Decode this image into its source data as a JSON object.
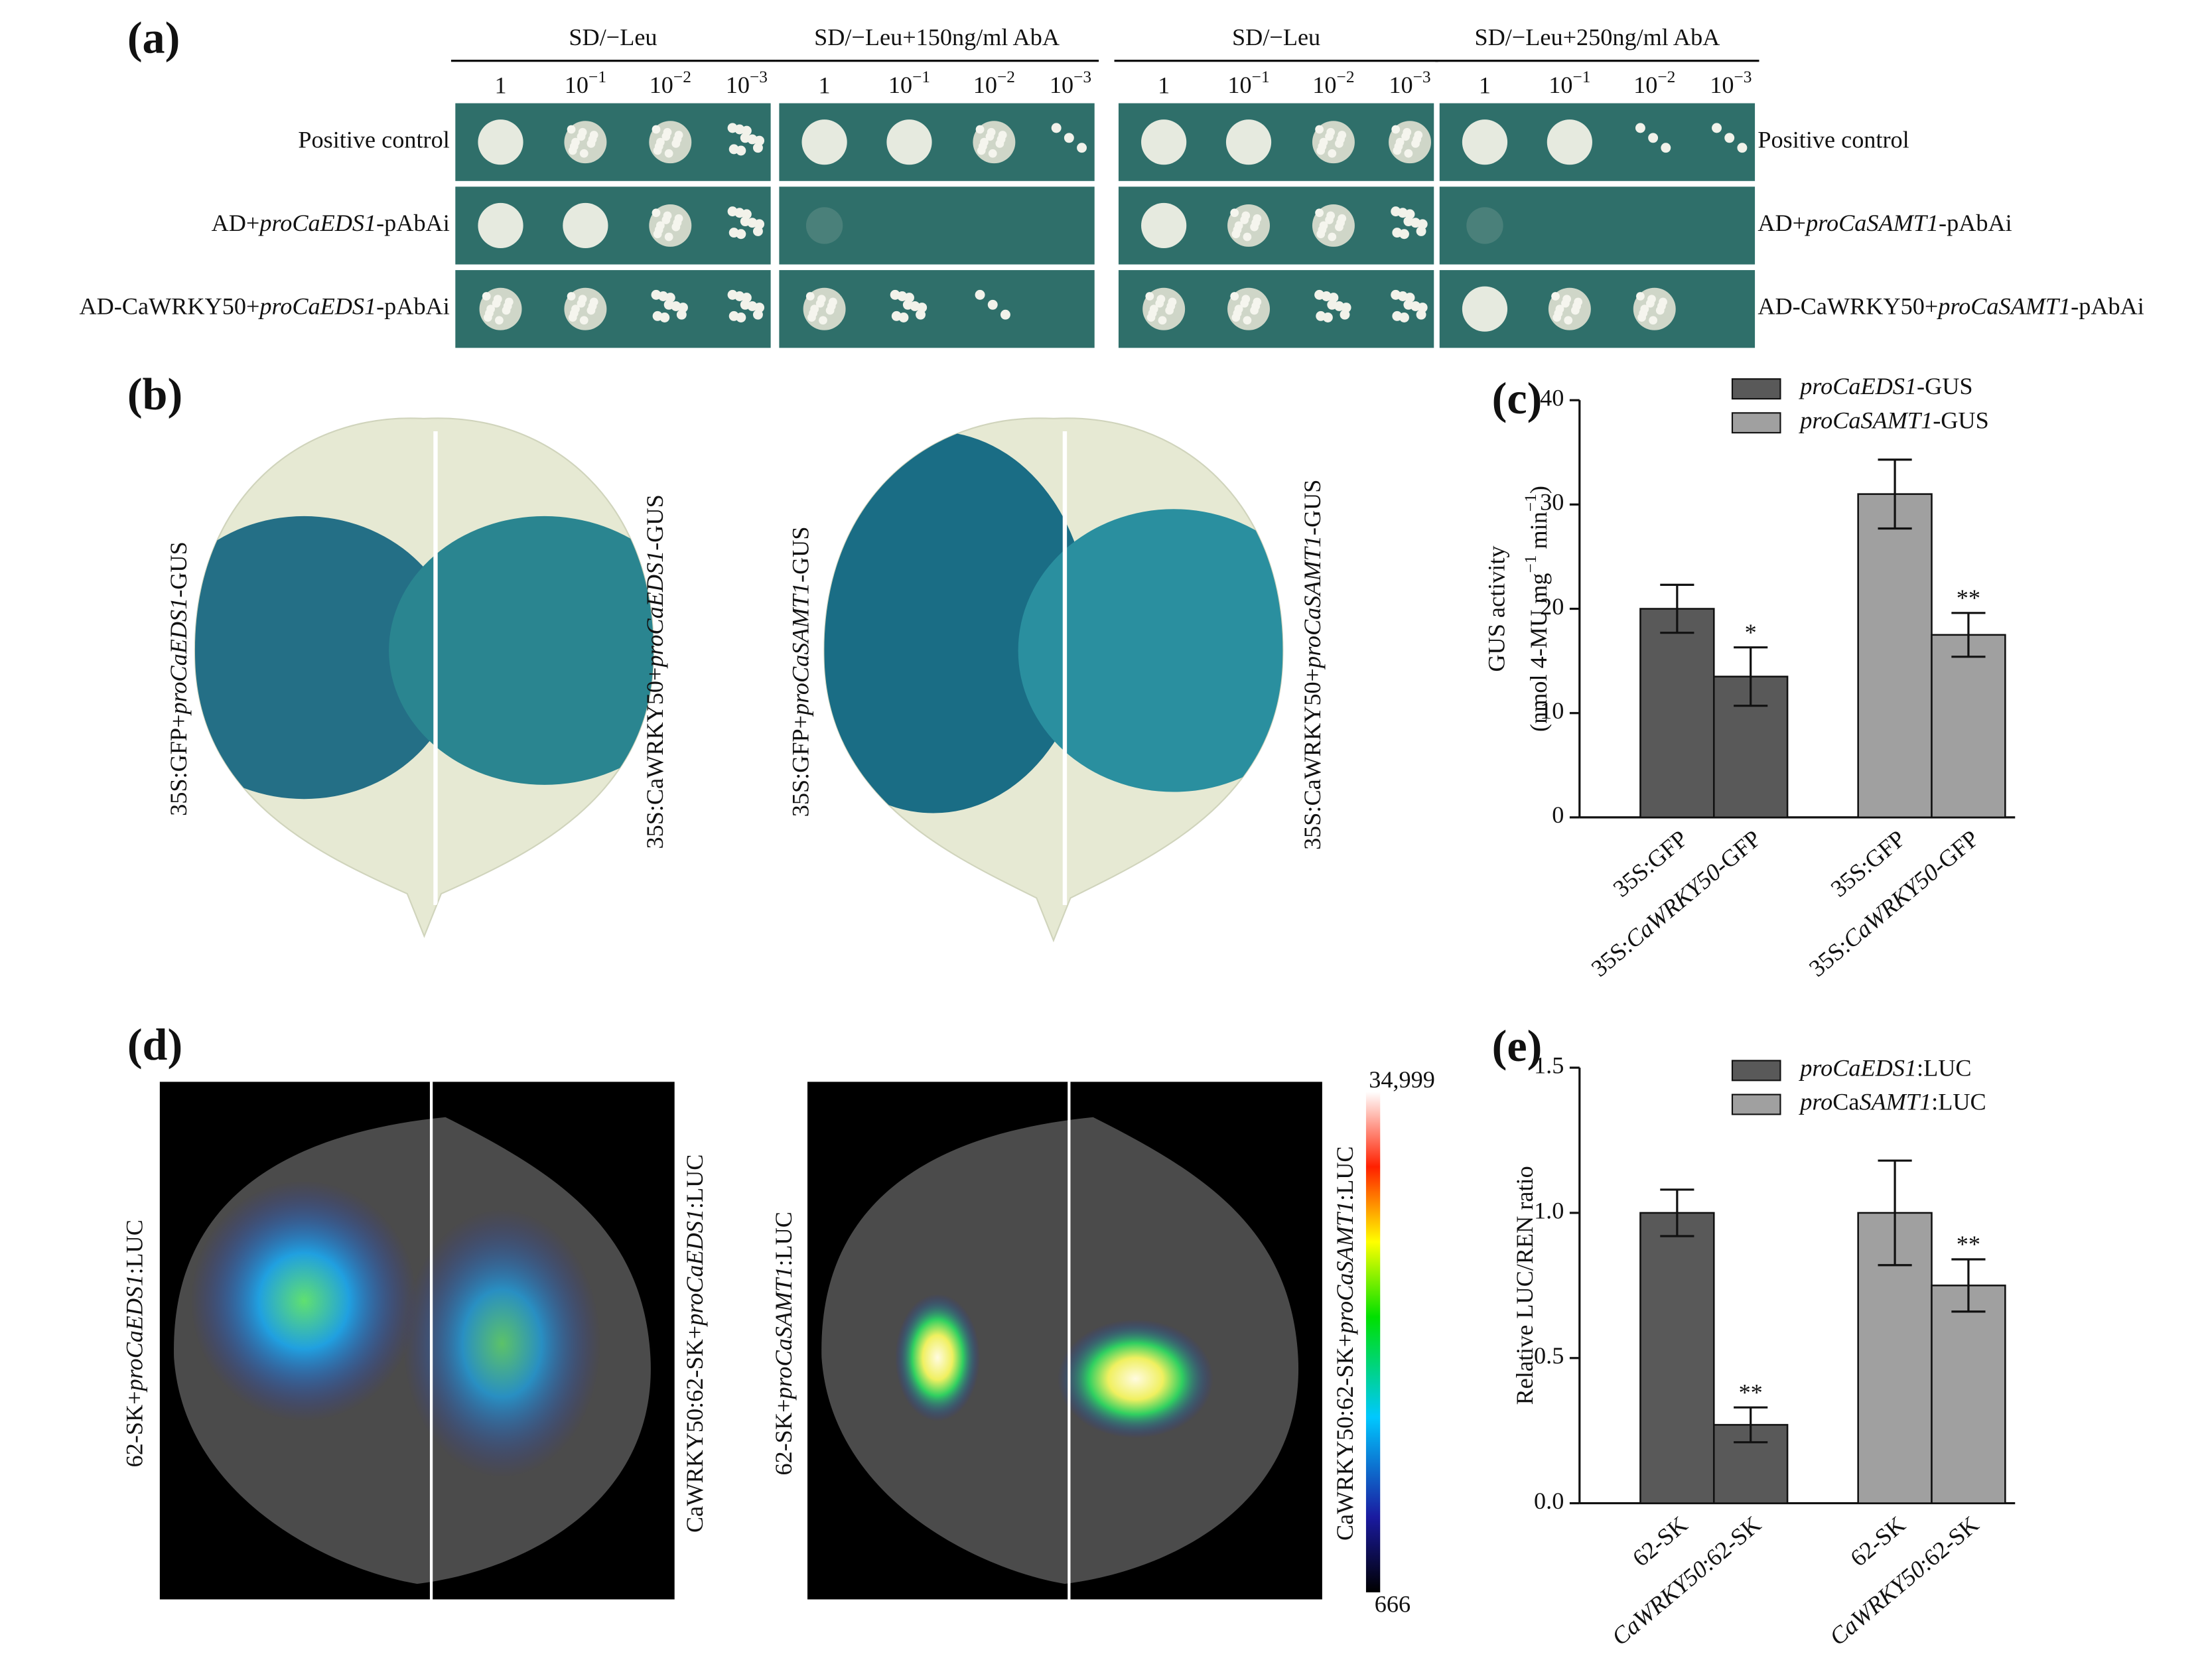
{
  "panel_a": {
    "label": "(a)",
    "headers": [
      "SD/−Leu",
      "SD/−Leu+150ng/ml AbA",
      "SD/−Leu",
      "SD/−Leu+250ng/ml AbA"
    ],
    "dilutions": [
      "1",
      [
        {
          "text": "10"
        },
        {
          "text": "−1",
          "sup": true
        }
      ],
      [
        {
          "text": "10"
        },
        {
          "text": "−2",
          "sup": true
        }
      ],
      [
        {
          "text": "10"
        },
        {
          "text": "−3",
          "sup": true
        }
      ]
    ],
    "rows_left": [
      "Positive control",
      [
        {
          "text": "AD+"
        },
        {
          "text": "proCaEDS1",
          "italic": true
        },
        {
          "text": "-pAbAi"
        }
      ],
      [
        {
          "text": "AD-CaWRKY50+"
        },
        {
          "text": "proCaEDS1",
          "italic": true
        },
        {
          "text": "-pAbAi"
        }
      ]
    ],
    "rows_right": [
      "Positive control",
      [
        {
          "text": "AD+"
        },
        {
          "text": "proCaSAMT1",
          "italic": true
        },
        {
          "text": "-pAbAi"
        }
      ],
      [
        {
          "text": "AD-CaWRKY50+"
        },
        {
          "text": "proCaSAMT1",
          "italic": true
        },
        {
          "text": "-pAbAi"
        }
      ]
    ]
  },
  "panel_b": {
    "label": "(b)",
    "leaf_labels": [
      [
        {
          "text": "35S:GFP+"
        },
        {
          "text": "proCaEDS1",
          "italic": true
        },
        {
          "text": "-GUS"
        }
      ],
      [
        {
          "text": "35S:CaWRKY50+"
        },
        {
          "text": "proCaEDS1",
          "italic": true
        },
        {
          "text": "-GUS"
        }
      ],
      [
        {
          "text": "35S:GFP+"
        },
        {
          "text": "proCaSAMT1",
          "italic": true
        },
        {
          "text": "-GUS"
        }
      ],
      [
        {
          "text": "35S:CaWRKY50+"
        },
        {
          "text": "proCaSAMT1",
          "italic": true
        },
        {
          "text": "-GUS"
        }
      ]
    ]
  },
  "panel_d": {
    "label": "(d)",
    "leaf_labels": [
      [
        {
          "text": "62-SK+"
        },
        {
          "text": "proCaEDS1",
          "italic": true
        },
        {
          "text": ":LUC"
        }
      ],
      [
        {
          "text": "CaWRKY50:62-SK+"
        },
        {
          "text": "proCaEDS1",
          "italic": true
        },
        {
          "text": ":LUC"
        }
      ],
      [
        {
          "text": "62-SK+"
        },
        {
          "text": "proCaSAMT1",
          "italic": true
        },
        {
          "text": ":LUC"
        }
      ],
      [
        {
          "text": "CaWRKY50:62-SK+"
        },
        {
          "text": "proCaSAMT1",
          "italic": true
        },
        {
          "text": ":LUC"
        }
      ]
    ],
    "colorbar": {
      "max_label": "34,999",
      "min_label": "666"
    }
  },
  "chart_data": [
    {
      "type": "bar",
      "label": "(c)",
      "ylabel": [
        "GUS activity",
        [
          {
            "text": "(nmol 4-MU mg"
          },
          {
            "text": "−1",
            "sup": true
          },
          {
            "text": " min"
          },
          {
            "text": "−1",
            "sup": true
          },
          {
            "text": ")"
          }
        ]
      ],
      "categories": [
        "35S:GFP",
        [
          {
            "text": "35S:"
          },
          {
            "text": "CaWRKY50",
            "italic": true
          },
          {
            "text": "-GFP"
          }
        ]
      ],
      "series": [
        {
          "name": [
            {
              "text": "proCaEDS1",
              "italic": true
            },
            {
              "text": "-GUS"
            }
          ],
          "color": "#595959",
          "values": [
            20,
            13.5
          ],
          "errors": [
            2.3,
            2.8
          ],
          "significance": [
            null,
            "*"
          ]
        },
        {
          "name": [
            {
              "text": "proCaSAMT1",
              "italic": true
            },
            {
              "text": "-GUS"
            }
          ],
          "color": "#a0a0a0",
          "values": [
            31,
            17.5
          ],
          "errors": [
            3.3,
            2.1
          ],
          "significance": [
            null,
            "**"
          ]
        }
      ],
      "ylim": [
        0,
        40
      ],
      "yticks": [
        0,
        10,
        20,
        30,
        40
      ]
    },
    {
      "type": "bar",
      "label": "(e)",
      "ylabel": [
        "Relative LUC/REN ratio"
      ],
      "categories": [
        "62-SK",
        [
          {
            "text": "CaWRKY50",
            "italic": true
          },
          {
            "text": ":62-SK"
          }
        ]
      ],
      "series": [
        {
          "name": [
            {
              "text": "proCaEDS1",
              "italic": true
            },
            {
              "text": ":LUC"
            }
          ],
          "color": "#595959",
          "values": [
            1,
            0.27
          ],
          "errors": [
            0.08,
            0.06
          ],
          "significance": [
            null,
            "**"
          ]
        },
        {
          "name": [
            {
              "text": "pro",
              "italic": true
            },
            {
              "text": "Ca"
            },
            {
              "text": "SAMT1",
              "italic": true
            },
            {
              "text": ":LUC"
            }
          ],
          "color": "#a0a0a0",
          "values": [
            1,
            0.75
          ],
          "errors": [
            0.18,
            0.09
          ],
          "significance": [
            null,
            "**"
          ]
        }
      ],
      "ylim": [
        0,
        1.5
      ],
      "yticks": [
        {
          "value": 0,
          "label": "0.0"
        },
        {
          "value": 0.5,
          "label": "0.5"
        },
        {
          "value": 1,
          "label": "1.0"
        },
        {
          "value": 1.5,
          "label": "1.5"
        }
      ]
    }
  ]
}
